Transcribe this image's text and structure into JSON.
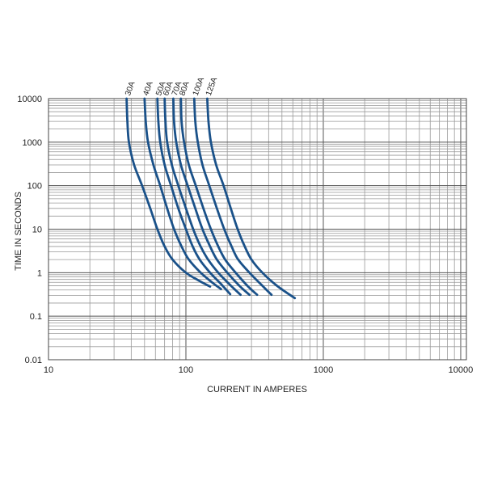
{
  "chart_data": {
    "type": "line",
    "title": "",
    "xlabel": "CURRENT IN AMPERES",
    "ylabel": "TIME IN SECONDS",
    "x_scale": "log",
    "y_scale": "log",
    "xlim": [
      10,
      11000
    ],
    "ylim": [
      0.01,
      10000
    ],
    "x_ticks": [
      10,
      100,
      1000,
      10000
    ],
    "x_tick_labels": [
      "10",
      "100",
      "1000",
      "10000"
    ],
    "y_ticks": [
      10000,
      1000,
      100,
      10,
      1,
      0.1,
      0.01
    ],
    "y_tick_labels": [
      "10000",
      "1000",
      "100",
      "10",
      "1",
      "0.1",
      "0.01"
    ],
    "grid": true,
    "line_color": "#1a5189",
    "series": [
      {
        "name": "30A",
        "points": [
          [
            37,
            10000
          ],
          [
            37.5,
            3000
          ],
          [
            38.5,
            1000
          ],
          [
            42,
            300
          ],
          [
            48,
            100
          ],
          [
            55,
            30
          ],
          [
            62,
            10
          ],
          [
            70,
            4
          ],
          [
            80,
            2
          ],
          [
            100,
            1
          ],
          [
            125,
            0.65
          ],
          [
            150,
            0.48
          ]
        ]
      },
      {
        "name": "40A",
        "points": [
          [
            50,
            10000
          ],
          [
            51,
            3000
          ],
          [
            53,
            1000
          ],
          [
            58,
            300
          ],
          [
            65,
            100
          ],
          [
            73,
            30
          ],
          [
            82,
            10
          ],
          [
            93,
            4
          ],
          [
            105,
            2
          ],
          [
            128,
            1
          ],
          [
            155,
            0.6
          ],
          [
            180,
            0.42
          ]
        ]
      },
      {
        "name": "50A",
        "points": [
          [
            62,
            10000
          ],
          [
            63,
            3000
          ],
          [
            65,
            1000
          ],
          [
            70,
            300
          ],
          [
            78,
            100
          ],
          [
            88,
            30
          ],
          [
            100,
            10
          ],
          [
            112,
            4
          ],
          [
            126,
            2
          ],
          [
            150,
            1
          ],
          [
            180,
            0.55
          ],
          [
            210,
            0.32
          ]
        ]
      },
      {
        "name": "60A",
        "points": [
          [
            70,
            10000
          ],
          [
            71,
            3000
          ],
          [
            73,
            1000
          ],
          [
            79,
            300
          ],
          [
            88,
            100
          ],
          [
            100,
            30
          ],
          [
            113,
            10
          ],
          [
            128,
            4
          ],
          [
            145,
            2
          ],
          [
            172,
            1
          ],
          [
            210,
            0.52
          ],
          [
            250,
            0.31
          ]
        ]
      },
      {
        "name": "70A",
        "points": [
          [
            81,
            10000
          ],
          [
            82,
            3000
          ],
          [
            85,
            1000
          ],
          [
            92,
            300
          ],
          [
            103,
            100
          ],
          [
            117,
            30
          ],
          [
            132,
            10
          ],
          [
            150,
            4
          ],
          [
            168,
            2
          ],
          [
            200,
            1
          ],
          [
            245,
            0.5
          ],
          [
            290,
            0.31
          ]
        ]
      },
      {
        "name": "80A",
        "points": [
          [
            92,
            10000
          ],
          [
            93,
            3000
          ],
          [
            97,
            1000
          ],
          [
            105,
            300
          ],
          [
            118,
            100
          ],
          [
            134,
            30
          ],
          [
            152,
            10
          ],
          [
            172,
            4
          ],
          [
            193,
            2
          ],
          [
            230,
            1
          ],
          [
            280,
            0.5
          ],
          [
            330,
            0.31
          ]
        ]
      },
      {
        "name": "100A",
        "points": [
          [
            115,
            10000
          ],
          [
            117,
            3000
          ],
          [
            122,
            1000
          ],
          [
            132,
            300
          ],
          [
            148,
            100
          ],
          [
            168,
            30
          ],
          [
            190,
            10
          ],
          [
            215,
            4
          ],
          [
            240,
            2
          ],
          [
            290,
            1
          ],
          [
            360,
            0.5
          ],
          [
            420,
            0.31
          ]
        ]
      },
      {
        "name": "125A",
        "points": [
          [
            143,
            10000
          ],
          [
            146,
            3000
          ],
          [
            152,
            1000
          ],
          [
            166,
            300
          ],
          [
            188,
            100
          ],
          [
            212,
            30
          ],
          [
            238,
            10
          ],
          [
            268,
            4
          ],
          [
            300,
            2
          ],
          [
            360,
            1
          ],
          [
            460,
            0.5
          ],
          [
            620,
            0.26
          ]
        ]
      }
    ]
  }
}
